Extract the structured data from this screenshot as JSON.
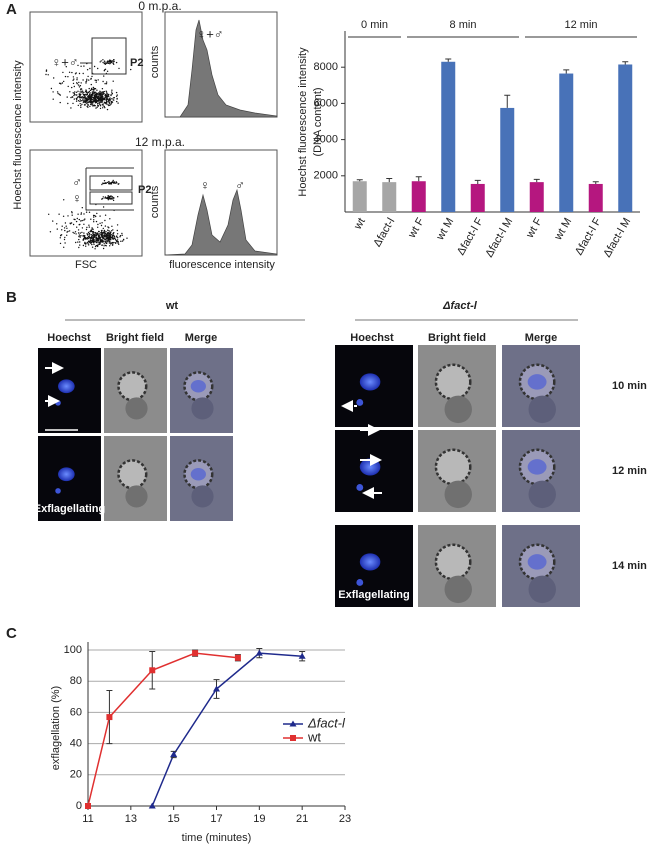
{
  "panel_labels": [
    "A",
    "B",
    "C"
  ],
  "panel_a": {
    "y_label": "Hoechst fluorescence intensity",
    "hist_y_label": "counts",
    "scatter_x_label": "FSC",
    "hist_x_label": "fluorescence intensity",
    "rows": [
      {
        "time": "0 m.p.a.",
        "gate_labels": [
          "♀+♂"
        ],
        "gate": "P2",
        "hist_labels": [
          "♀+♂"
        ]
      },
      {
        "time": "12 m.p.a.",
        "gate_labels": [
          "♂",
          "♀"
        ],
        "gate": "P2",
        "hist_labels": [
          "♀",
          "♂"
        ]
      }
    ]
  },
  "chart_data": [
    {
      "type": "bar",
      "ylabel": [
        "Hoechst fluorescence intensity",
        "(DNA content)"
      ],
      "ylim": [
        0,
        10000
      ],
      "yticks": [
        2000,
        4000,
        6000,
        8000
      ],
      "groups": [
        {
          "label": "0 min",
          "categories": [
            "wt",
            "Δfact-l"
          ],
          "values": [
            1700,
            1650
          ],
          "errors": [
            80,
            200
          ],
          "colors": [
            "#a6a6a6",
            "#a6a6a6"
          ]
        },
        {
          "label": "8 min",
          "categories": [
            "wt F",
            "wt M",
            "Δfact-l F",
            "Δfact-l M"
          ],
          "values": [
            1700,
            8300,
            1550,
            5750
          ],
          "errors": [
            250,
            150,
            200,
            700
          ],
          "colors": [
            "#b5177f",
            "#4872b8",
            "#b5177f",
            "#4872b8"
          ]
        },
        {
          "label": "12 min",
          "categories": [
            "wt F",
            "wt M",
            "Δfact-l F",
            "Δfact-l M"
          ],
          "values": [
            1650,
            7650,
            1550,
            8150
          ],
          "errors": [
            150,
            200,
            120,
            150
          ],
          "colors": [
            "#b5177f",
            "#4872b8",
            "#b5177f",
            "#4872b8"
          ]
        }
      ]
    },
    {
      "type": "line",
      "xlabel": "time (minutes)",
      "ylabel": "exflagellation (%)",
      "xlim": [
        11,
        23
      ],
      "xticks": [
        11,
        13,
        15,
        17,
        19,
        21,
        23
      ],
      "ylim": [
        0,
        100
      ],
      "yticks": [
        0,
        20,
        40,
        60,
        80,
        100
      ],
      "grid": true,
      "series": [
        {
          "name": "Δfact-l",
          "color": "#1f2a8c",
          "marker": "triangle",
          "x": [
            14,
            15,
            17,
            19,
            21
          ],
          "values": [
            0,
            33,
            75,
            98,
            96
          ],
          "errors": [
            0,
            2,
            6,
            3,
            3
          ]
        },
        {
          "name": "wt",
          "color": "#e03030",
          "marker": "square",
          "x": [
            11,
            12,
            14,
            16,
            18
          ],
          "values": [
            0,
            57,
            87,
            98,
            95
          ],
          "errors": [
            0,
            17,
            12,
            2,
            2
          ]
        }
      ]
    }
  ],
  "panel_b": {
    "groups": [
      {
        "title": "wt",
        "columns": [
          "Hoechst",
          "Bright field",
          "Merge"
        ],
        "notes": [
          "Exflagellating"
        ]
      },
      {
        "title": "Δfact-l",
        "columns": [
          "Hoechst",
          "Bright field",
          "Merge"
        ],
        "times": [
          "10 min",
          "12 min",
          "14 min"
        ],
        "notes": [
          "Exflagellating"
        ]
      }
    ]
  }
}
